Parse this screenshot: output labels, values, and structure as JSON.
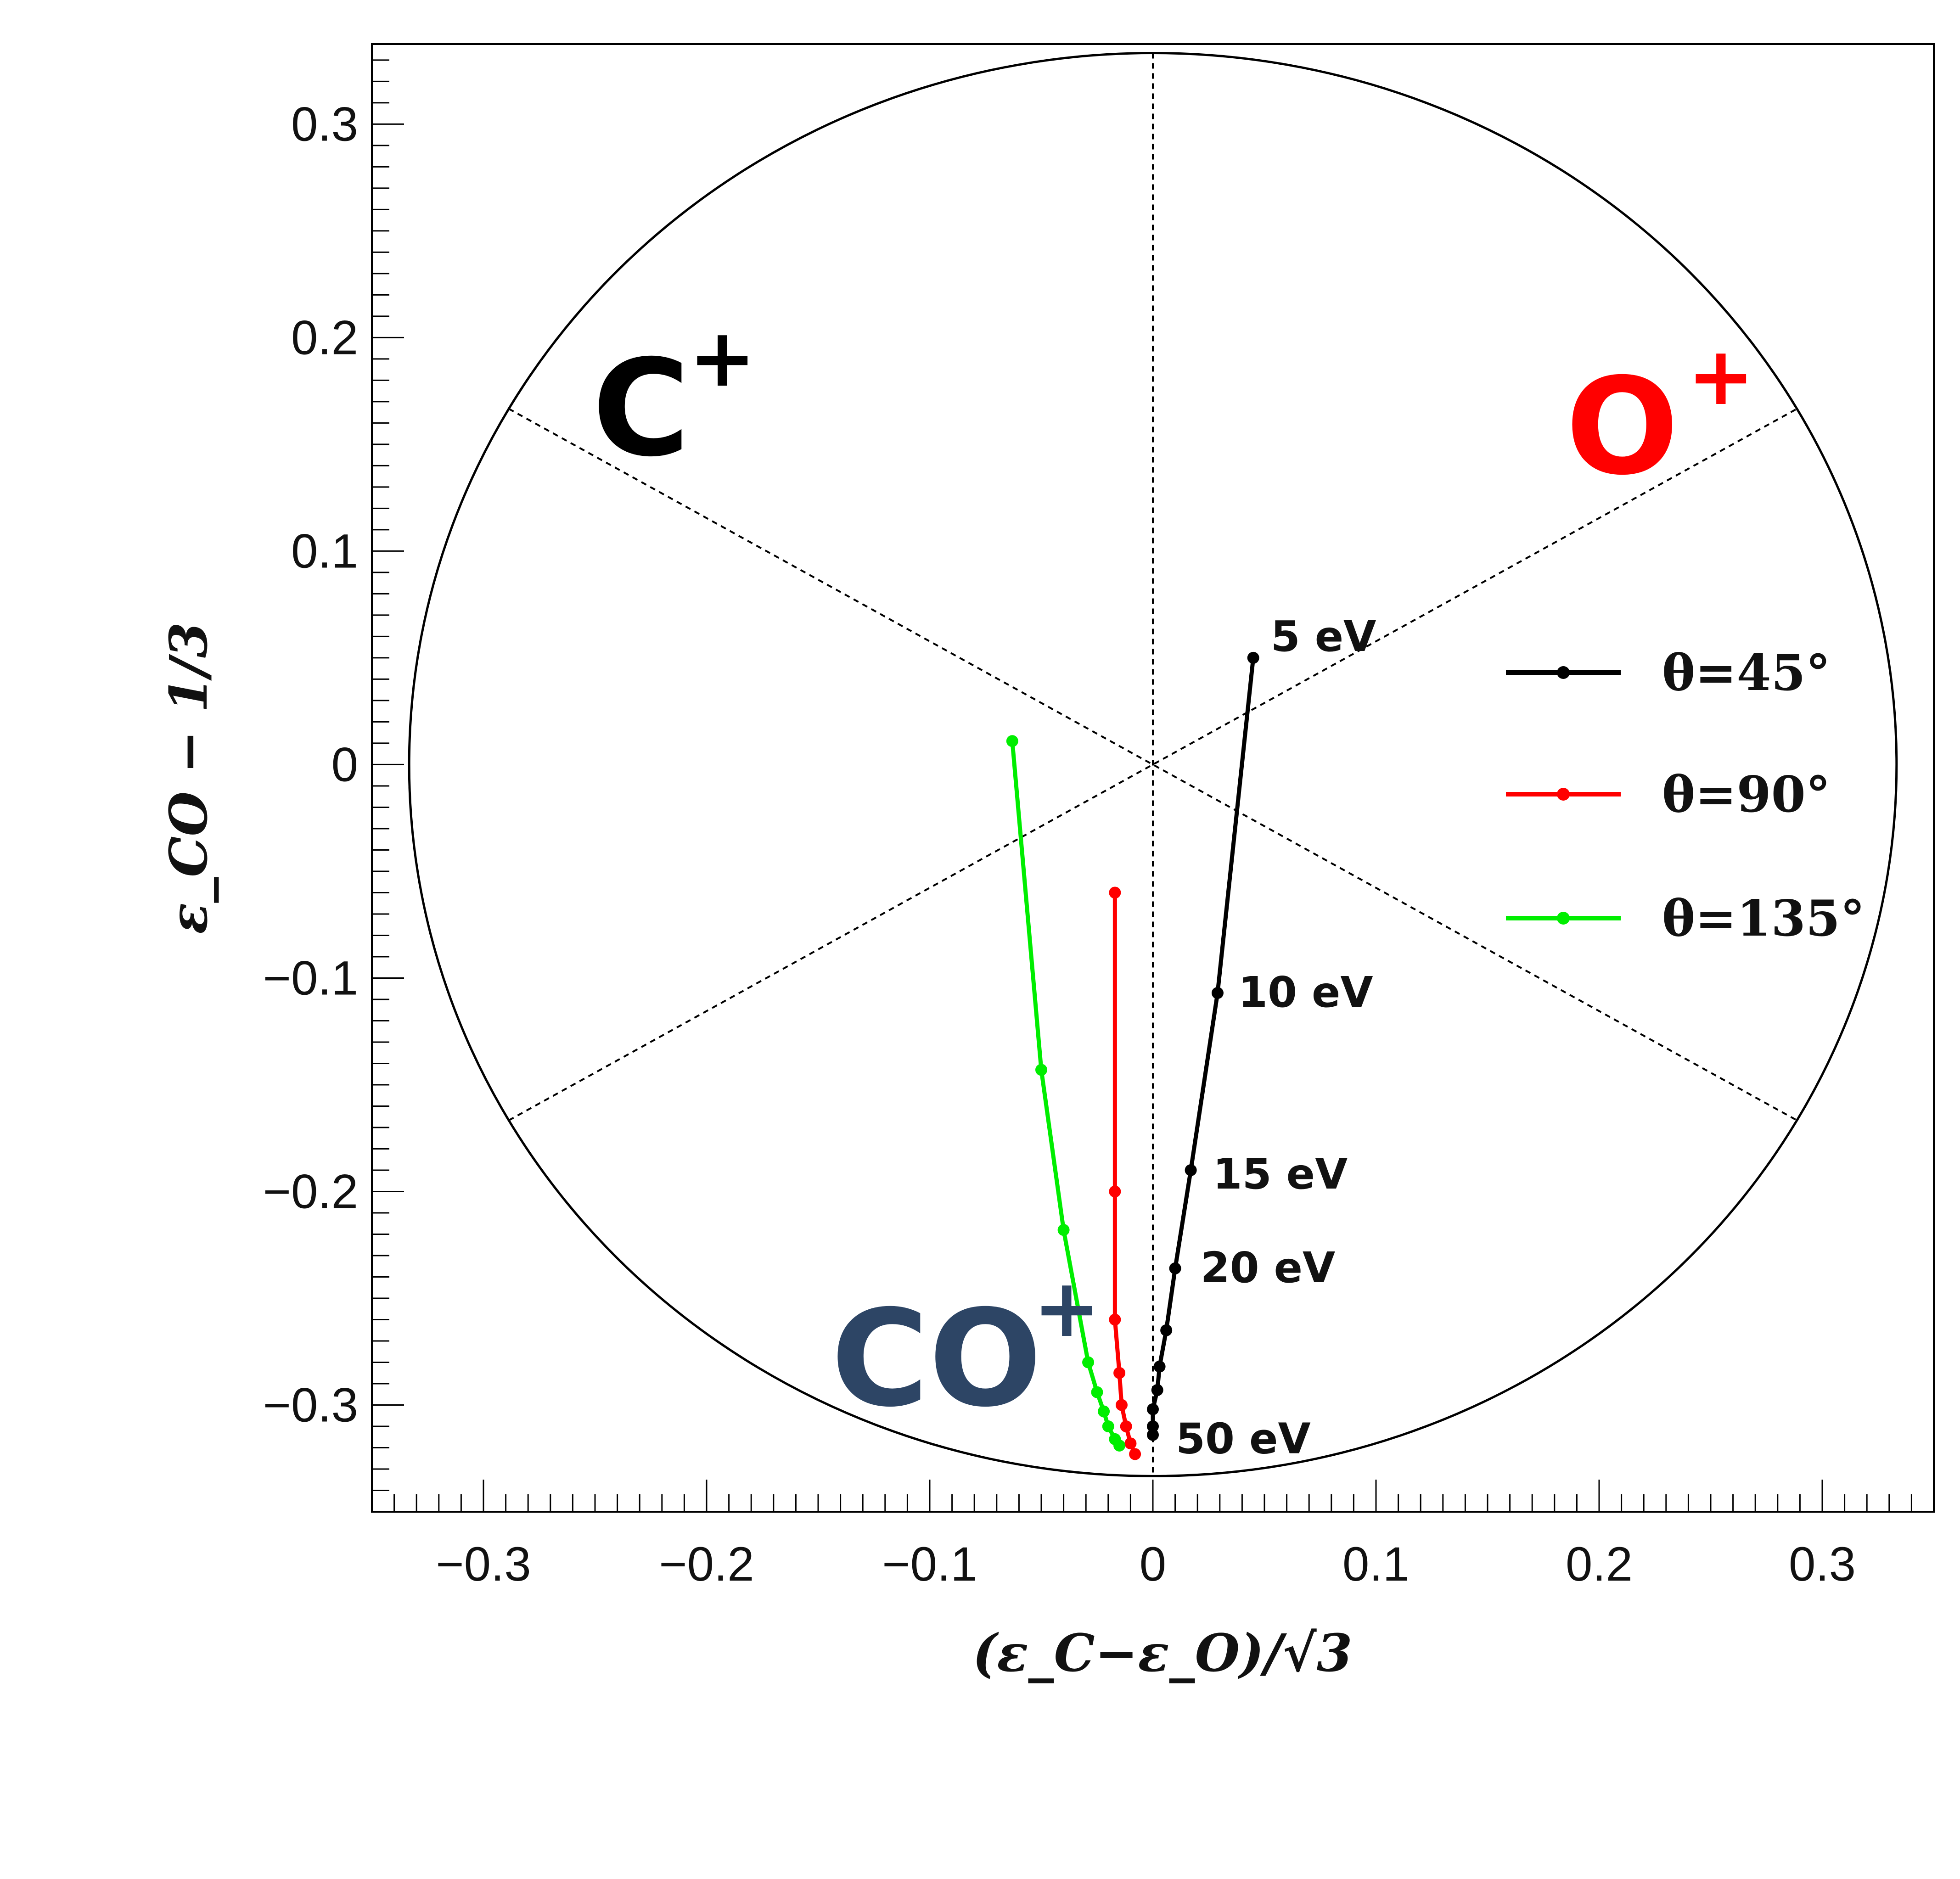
{
  "chart_data": {
    "type": "scatter",
    "xlabel": "(ε_C−ε_O)/√3",
    "ylabel": "ε_CO − 1/3",
    "xlim": [
      -0.35,
      0.35
    ],
    "ylim": [
      -0.35,
      0.3375
    ],
    "xticks": [
      {
        "v": -0.3,
        "label": "−0.3"
      },
      {
        "v": -0.2,
        "label": "−0.2"
      },
      {
        "v": -0.1,
        "label": "−0.1"
      },
      {
        "v": 0,
        "label": "0"
      },
      {
        "v": 0.1,
        "label": "0.1"
      },
      {
        "v": 0.2,
        "label": "0.2"
      },
      {
        "v": 0.3,
        "label": "0.3"
      }
    ],
    "yticks": [
      {
        "v": 0.3,
        "label": "0.3"
      },
      {
        "v": 0.2,
        "label": "0.2"
      },
      {
        "v": 0.1,
        "label": "0.1"
      },
      {
        "v": 0,
        "label": "0"
      },
      {
        "v": -0.1,
        "label": "−0.1"
      },
      {
        "v": -0.2,
        "label": "−0.2"
      },
      {
        "v": -0.3,
        "label": "−0.3"
      }
    ],
    "circle_radius": 0.3333,
    "region_labels": [
      {
        "text": "C",
        "sup": "+",
        "color": "#000000"
      },
      {
        "text": "O",
        "sup": "+",
        "color": "#ff0000"
      },
      {
        "text": "CO",
        "sup": "+",
        "color": "#2d4565"
      }
    ],
    "series": [
      {
        "name": "θ=45°",
        "color": "#000000",
        "points": [
          [
            0.045,
            0.05
          ],
          [
            0.029,
            -0.107
          ],
          [
            0.017,
            -0.19
          ],
          [
            0.01,
            -0.236
          ],
          [
            0.006,
            -0.265
          ],
          [
            0.003,
            -0.282
          ],
          [
            0.002,
            -0.293
          ],
          [
            0.0,
            -0.302
          ],
          [
            0.0,
            -0.31
          ],
          [
            0.0,
            -0.314
          ]
        ]
      },
      {
        "name": "θ=90°",
        "color": "#ff0000",
        "points": [
          [
            -0.017,
            -0.06
          ],
          [
            -0.017,
            -0.2
          ],
          [
            -0.017,
            -0.26
          ],
          [
            -0.015,
            -0.285
          ],
          [
            -0.014,
            -0.3
          ],
          [
            -0.012,
            -0.31
          ],
          [
            -0.01,
            -0.318
          ],
          [
            -0.008,
            -0.323
          ]
        ]
      },
      {
        "name": "θ=135°",
        "color": "#00ee00",
        "points": [
          [
            -0.063,
            0.011
          ],
          [
            -0.05,
            -0.143
          ],
          [
            -0.04,
            -0.218
          ],
          [
            -0.029,
            -0.28
          ],
          [
            -0.025,
            -0.294
          ],
          [
            -0.022,
            -0.303
          ],
          [
            -0.02,
            -0.31
          ],
          [
            -0.017,
            -0.316
          ],
          [
            -0.015,
            -0.319
          ]
        ]
      }
    ],
    "annotations": [
      {
        "text": "5 eV",
        "x": 0.045,
        "y": 0.05
      },
      {
        "text": "10 eV",
        "x": 0.029,
        "y": -0.107
      },
      {
        "text": "15 eV",
        "x": 0.017,
        "y": -0.19
      },
      {
        "text": "20 eV",
        "x": 0.01,
        "y": -0.236
      },
      {
        "text": "50 eV",
        "x": 0.0,
        "y": -0.314
      }
    ],
    "legend": {
      "position": "right-middle"
    },
    "grid": false
  }
}
